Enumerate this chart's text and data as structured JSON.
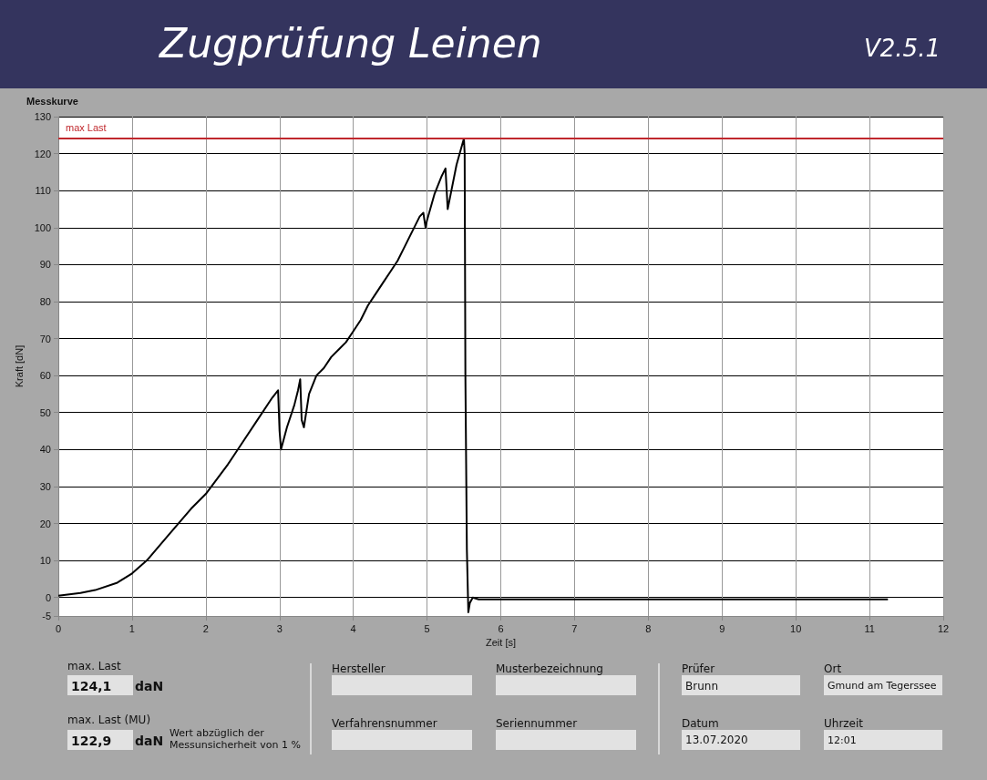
{
  "chart_data": {
    "type": "line",
    "title": "Zugprüfung Leinen",
    "subtitle": "Messkurve",
    "xlabel": "Zeit [s]",
    "ylabel": "Kraft [dN]",
    "xlim": [
      0,
      12
    ],
    "xticks": [
      0,
      1,
      2,
      3,
      4,
      5,
      6,
      7,
      8,
      9,
      10,
      11,
      12
    ],
    "ylim": [
      -5,
      130
    ],
    "yticks": [
      -5,
      0,
      10,
      20,
      30,
      40,
      50,
      60,
      70,
      80,
      90,
      100,
      110,
      120,
      130
    ],
    "grid": true,
    "marker": "none",
    "line_style": "solid",
    "ref_lines": [
      {
        "axis": "y",
        "value": 124.1,
        "label": "max Last",
        "color": "#c0282d"
      }
    ],
    "x": [
      0,
      0.3,
      0.5,
      0.8,
      1,
      1.2,
      1.5,
      1.8,
      2,
      2.3,
      2.5,
      2.7,
      2.9,
      2.98,
      3.0,
      3.02,
      3.1,
      3.2,
      3.25,
      3.28,
      3.3,
      3.33,
      3.4,
      3.5,
      3.6,
      3.7,
      3.8,
      3.9,
      4.0,
      4.1,
      4.2,
      4.3,
      4.4,
      4.5,
      4.6,
      4.7,
      4.8,
      4.9,
      4.95,
      4.98,
      5.0,
      5.1,
      5.2,
      5.25,
      5.28,
      5.3,
      5.4,
      5.5,
      5.51,
      5.52,
      5.54,
      5.56,
      5.58,
      5.62,
      5.7,
      6,
      8,
      10,
      11.25
    ],
    "series": [
      {
        "color": "#000000",
        "values": [
          0.5,
          1.2,
          2,
          4,
          6.5,
          10,
          17,
          24,
          28,
          36,
          42,
          48,
          54,
          56,
          45,
          40,
          46,
          52,
          56,
          59,
          48,
          46,
          55,
          60,
          62,
          65,
          67,
          69,
          72,
          75,
          79,
          82,
          85,
          88,
          91,
          95,
          99,
          103,
          104,
          100,
          102,
          109,
          114,
          116,
          105,
          107,
          117,
          124.1,
          120,
          60,
          13,
          -4,
          -1.5,
          0,
          -0.5,
          -0.5,
          -0.5,
          -0.5,
          -0.5
        ]
      }
    ],
    "annotations": [
      "V2.5.1",
      "max. Last",
      "124,1",
      "daN",
      "max. Last (MU)",
      "122,9",
      "daN",
      "Wert abzüglich der Messunsicherheit von 1 %",
      "Hersteller",
      "Verfahrensnummer",
      "Musterbezeichnung",
      "Seriennummer",
      "Prüfer",
      "Brunn",
      "Datum",
      "13.07.2020",
      "Ort",
      "Gmund am Tegerssee",
      "Uhrzeit",
      "12:01"
    ]
  }
}
